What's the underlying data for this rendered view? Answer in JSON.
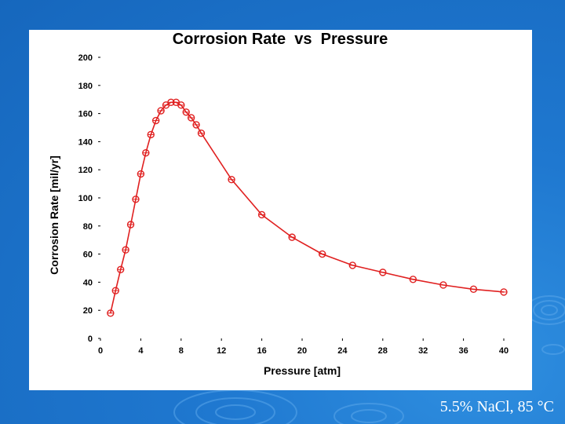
{
  "chart_data": {
    "type": "line",
    "title": "Corrosion Rate  vs  Pressure",
    "xlabel": "Pressure [atm]",
    "ylabel": "Corrosion Rate [mil/yr]",
    "xlim": [
      0,
      40
    ],
    "ylim": [
      0,
      200
    ],
    "xticks": [
      0,
      4,
      8,
      12,
      16,
      20,
      24,
      28,
      32,
      36,
      40
    ],
    "yticks": [
      0,
      20,
      40,
      60,
      80,
      100,
      120,
      140,
      160,
      180,
      200
    ],
    "grid": false,
    "series": [
      {
        "name": "Corrosion Rate",
        "color": "#e02020",
        "marker": "circle",
        "x": [
          1,
          1.5,
          2,
          2.5,
          3,
          3.5,
          4,
          4.5,
          5,
          5.5,
          6,
          6.5,
          7,
          7.5,
          8,
          8.5,
          9,
          9.5,
          10,
          13,
          16,
          19,
          22,
          25,
          28,
          31,
          34,
          37,
          40
        ],
        "y": [
          18,
          34,
          49,
          63,
          81,
          99,
          117,
          132,
          145,
          155,
          162,
          166,
          168,
          168,
          166,
          161,
          157,
          152,
          146,
          113,
          88,
          72,
          60,
          52,
          47,
          42,
          38,
          35,
          33
        ]
      }
    ]
  },
  "caption": "5.5% NaCl, 85 °C"
}
